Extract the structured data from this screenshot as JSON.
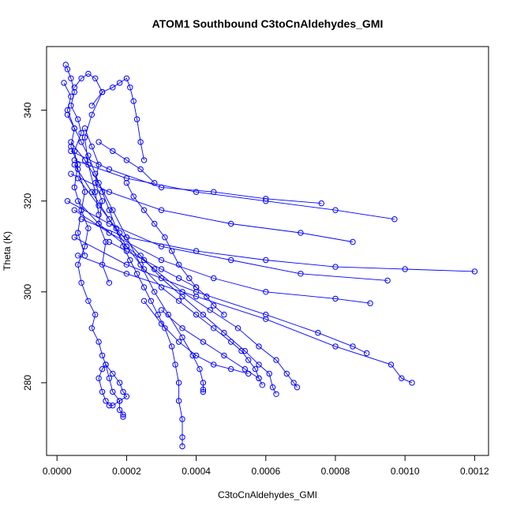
{
  "chart_data": {
    "type": "scatter",
    "title": "ATOM1 Southbound C3toCnAldehydes_GMI",
    "xlabel": "C3toCnAldehydes_GMI",
    "ylabel": "Theta (K)",
    "xlim": [
      -3e-05,
      0.00124
    ],
    "ylim": [
      264,
      354
    ],
    "x_ticks": [
      0.0,
      0.0002,
      0.0004,
      0.0006,
      0.0008,
      0.001,
      0.0012
    ],
    "x_tick_labels": [
      "0.0000",
      "0.0002",
      "0.0004",
      "0.0006",
      "0.0008",
      "0.0010",
      "0.0012"
    ],
    "y_ticks": [
      280,
      300,
      320,
      340
    ],
    "y_tick_labels": [
      "280",
      "300",
      "320",
      "340"
    ],
    "series_color": "#0000ff",
    "marker": "open-circle",
    "connected": true,
    "grid": false,
    "series": [
      {
        "x": [
          2.5e-05,
          3e-05,
          4e-05,
          5e-05,
          4e-05,
          6e-05,
          7e-05,
          5e-05,
          6e-05,
          8e-05,
          7e-05,
          9e-05,
          8e-05,
          6e-05,
          7e-05,
          9e-05,
          0.00011,
          0.0001,
          0.00012,
          0.00013,
          0.00014,
          0.00016,
          0.00018,
          0.00019,
          0.0002,
          0.00018,
          0.00016,
          0.00015,
          0.00014,
          0.00013,
          0.00012,
          0.00013,
          0.00014,
          0.00015,
          0.00016,
          0.00018,
          0.00018,
          0.00019,
          0.00019
        ],
        "y": [
          350,
          349,
          347,
          344,
          341,
          338,
          335,
          331,
          327,
          322,
          318,
          314,
          310,
          306,
          302,
          298,
          295,
          292,
          289,
          286,
          284,
          282,
          280,
          278,
          277,
          276,
          275,
          275,
          276,
          278,
          281,
          283,
          284,
          281,
          278,
          276,
          274,
          273,
          272.5
        ]
      },
      {
        "x": [
          3e-05,
          5e-05,
          7e-05,
          9e-05,
          0.00011,
          0.00013,
          0.00015,
          0.00017,
          0.00019,
          0.00021,
          0.00023,
          0.00025,
          0.00027,
          0.00029,
          0.00031,
          0.00033,
          0.00034,
          0.00035,
          0.00035,
          0.00036,
          0.00036,
          0.00036
        ],
        "y": [
          339,
          336,
          333,
          330,
          326,
          322,
          318,
          314,
          310,
          307,
          304,
          301,
          298,
          295,
          292,
          288,
          284,
          280,
          276,
          272,
          268,
          266
        ]
      },
      {
        "x": [
          4e-05,
          8e-05,
          0.00012,
          0.00016,
          0.0002,
          0.00024,
          0.00028,
          0.00032,
          0.00036,
          0.00039,
          0.00041,
          0.00042,
          0.00042,
          0.00042
        ],
        "y": [
          333,
          329,
          324,
          318,
          312,
          306,
          300,
          295,
          290,
          286,
          283,
          280,
          278.5,
          278
        ]
      },
      {
        "x": [
          5e-05,
          0.0001,
          0.00015,
          0.0002,
          0.00025,
          0.0003,
          0.00035,
          0.0004,
          0.00045,
          0.0005,
          0.00053,
          0.00055,
          0.00057,
          0.00058,
          0.00059
        ],
        "y": [
          328,
          322,
          316,
          310,
          305,
          301,
          298,
          295,
          292,
          289,
          287,
          285,
          283,
          281,
          279.5
        ]
      },
      {
        "x": [
          6e-05,
          0.00012,
          0.00018,
          0.00024,
          0.0003,
          0.00036,
          0.00042,
          0.00048,
          0.00054,
          0.00058,
          0.00061,
          0.00062,
          0.00063
        ],
        "y": [
          325,
          319,
          313,
          308,
          303,
          299,
          295,
          291,
          287,
          284,
          282,
          279,
          277.5
        ]
      },
      {
        "x": [
          6e-05,
          0.00012,
          0.0002,
          0.00028,
          0.00036,
          0.00044,
          0.00052,
          0.00058,
          0.00063,
          0.00066,
          0.00068,
          0.00069
        ],
        "y": [
          320,
          315,
          310,
          305,
          300,
          296,
          292,
          288,
          285,
          282,
          280,
          279
        ]
      },
      {
        "x": [
          7e-05,
          0.0002,
          0.0004,
          0.0006,
          0.0008,
          0.001,
          0.0012
        ],
        "y": [
          316,
          312,
          309,
          307,
          305.5,
          305,
          304.5
        ]
      },
      {
        "x": [
          5e-05,
          0.0002,
          0.0004,
          0.0006,
          0.00075,
          0.00085,
          0.00089
        ],
        "y": [
          312,
          306,
          300,
          295,
          291,
          288,
          286.5
        ]
      },
      {
        "x": [
          6e-05,
          0.0002,
          0.0004,
          0.0006,
          0.0008,
          0.00096,
          0.00099,
          0.00102
        ],
        "y": [
          308,
          304,
          299,
          294,
          288,
          284,
          281,
          280
        ]
      },
      {
        "x": [
          5e-05,
          0.0002,
          0.0004,
          0.0006,
          0.0008,
          0.00097
        ],
        "y": [
          329,
          325,
          322,
          320,
          318,
          316
        ]
      },
      {
        "x": [
          4e-05,
          0.00015,
          0.0003,
          0.00045,
          0.0006,
          0.00076
        ],
        "y": [
          331,
          327,
          323,
          322,
          320.5,
          319.5
        ]
      },
      {
        "x": [
          4e-05,
          0.00015,
          0.0003,
          0.0005,
          0.0007,
          0.00085
        ],
        "y": [
          326,
          322,
          318,
          315,
          313,
          311
        ]
      },
      {
        "x": [
          3e-05,
          0.00015,
          0.0003,
          0.0005,
          0.0007,
          0.00095
        ],
        "y": [
          320,
          315,
          310,
          307,
          304,
          302.5
        ]
      },
      {
        "x": [
          5e-05,
          0.00015,
          0.0003,
          0.00045,
          0.0006,
          0.0008,
          0.0009
        ],
        "y": [
          318,
          313,
          307,
          303,
          300,
          298.5,
          297.5
        ]
      },
      {
        "x": [
          0.0001,
          0.00013,
          0.00016,
          0.00018,
          0.0002,
          0.00021,
          0.00022,
          0.00023,
          0.00024,
          0.00025
        ],
        "y": [
          341,
          344,
          345,
          346,
          347,
          345,
          342,
          338,
          333,
          329
        ]
      },
      {
        "x": [
          5e-05,
          7e-05,
          9e-05,
          0.00011,
          0.00013,
          0.0001,
          8e-05,
          9e-05,
          0.00011,
          0.00012
        ],
        "y": [
          345,
          347,
          348,
          347,
          344,
          339,
          334,
          328,
          322,
          317
        ]
      },
      {
        "x": [
          2e-05,
          4e-05,
          3e-05,
          5e-05,
          4e-05,
          6e-05,
          5e-05,
          7e-05,
          6e-05,
          8e-05
        ],
        "y": [
          346,
          343,
          340,
          336,
          332,
          328,
          323,
          318,
          313,
          308
        ]
      },
      {
        "x": [
          8e-05,
          0.0001,
          0.00012,
          0.00011,
          0.00013,
          0.00012,
          0.00014,
          0.00013,
          0.00015
        ],
        "y": [
          336,
          332,
          328,
          324,
          320,
          315,
          311,
          306,
          302
        ]
      },
      {
        "x": [
          0.0002,
          0.00022,
          0.00025,
          0.00028,
          0.00031,
          0.00033,
          0.00035,
          0.00038,
          0.0004,
          0.00043,
          0.00045,
          0.00048
        ],
        "y": [
          324,
          321,
          318,
          315,
          312,
          309,
          306,
          303,
          301,
          299,
          297,
          295
        ]
      },
      {
        "x": [
          0.00025,
          0.0003,
          0.00035,
          0.0004,
          0.00045,
          0.0005,
          0.00055
        ],
        "y": [
          298,
          293,
          289,
          286,
          284,
          283,
          282
        ]
      },
      {
        "x": [
          0.0003,
          0.00036,
          0.00042,
          0.00048,
          0.00054,
          0.00058
        ],
        "y": [
          296,
          292,
          289,
          286,
          283,
          281
        ]
      },
      {
        "x": [
          0.00015,
          0.0002,
          0.00025,
          0.0003,
          0.00035,
          0.0004
        ],
        "y": [
          311,
          309,
          307,
          305,
          303,
          301
        ]
      },
      {
        "x": [
          0.00012,
          0.00016,
          0.0002,
          0.00024,
          0.00028
        ],
        "y": [
          333,
          331,
          329,
          327,
          324
        ]
      }
    ]
  }
}
